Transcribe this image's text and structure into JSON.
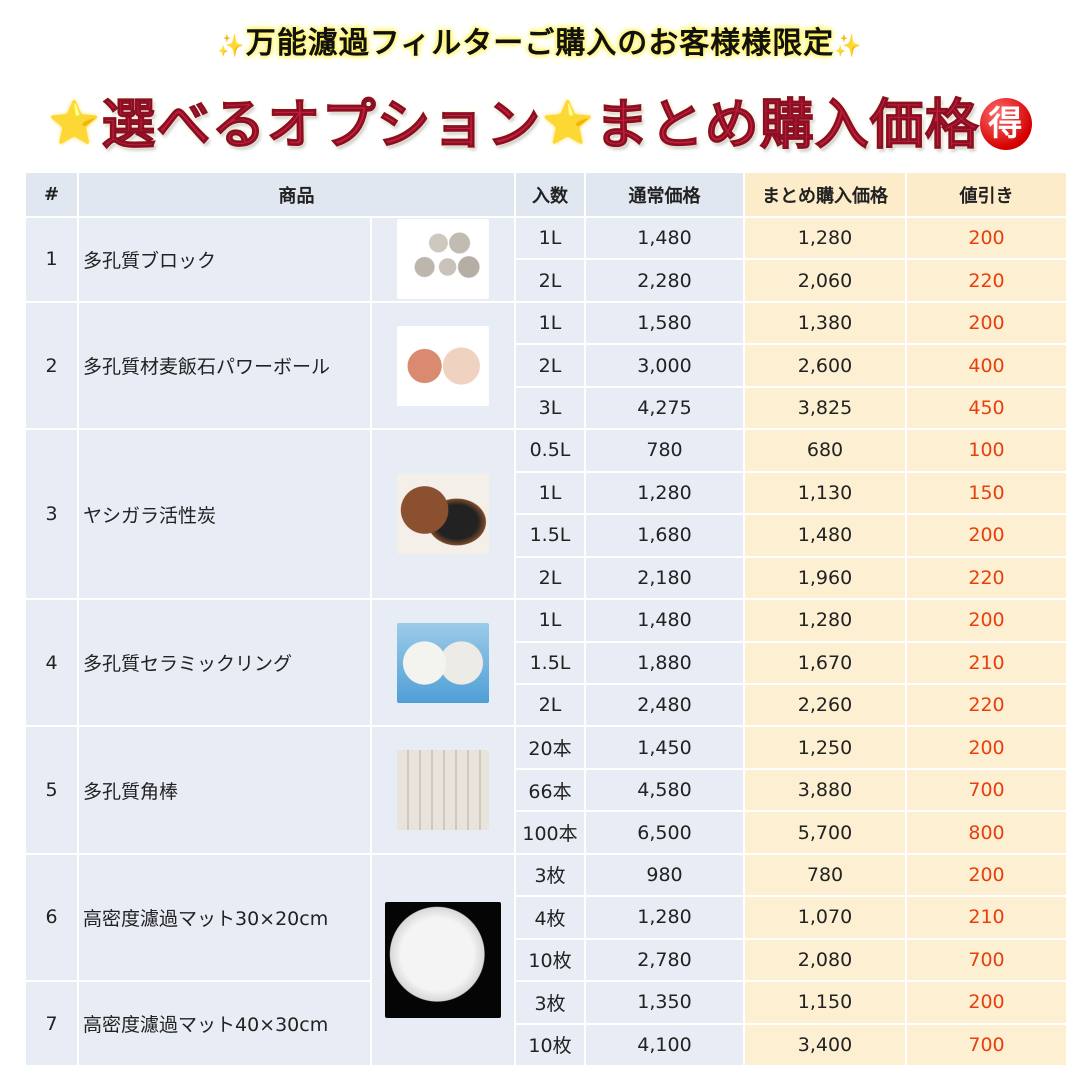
{
  "title_line1": "万能濾過フィルターご購入のお客様様限定",
  "title_line2_a": "選べるオプション",
  "title_line2_b": "まとめ購入価格",
  "badge": "得",
  "icons": {
    "sparkle": "✨",
    "star": "⭐"
  },
  "colors": {
    "title_red": "#c41d3a",
    "discount_red": "#e8400c",
    "header_bg": "#e1e7f1",
    "bulk_bg": "#fdf0d2"
  },
  "headers": [
    "#",
    "商品",
    "入数",
    "通常価格",
    "まとめ購入価格",
    "値引き"
  ],
  "products": [
    {
      "no": "1",
      "name": "多孔質ブロック",
      "image": "porous-block",
      "rows": [
        [
          "1L",
          "1,480",
          "1,280",
          "200"
        ],
        [
          "2L",
          "2,280",
          "2,060",
          "220"
        ]
      ]
    },
    {
      "no": "2",
      "name": "多孔質材麦飯石パワーボール",
      "image": "power-ball",
      "rows": [
        [
          "1L",
          "1,580",
          "1,380",
          "200"
        ],
        [
          "2L",
          "3,000",
          "2,600",
          "400"
        ],
        [
          "3L",
          "4,275",
          "3,825",
          "450"
        ]
      ]
    },
    {
      "no": "3",
      "name": "ヤシガラ活性炭",
      "image": "coconut-carbon",
      "rows": [
        [
          "0.5L",
          "780",
          "680",
          "100"
        ],
        [
          "1L",
          "1,280",
          "1,130",
          "150"
        ],
        [
          "1.5L",
          "1,680",
          "1,480",
          "200"
        ],
        [
          "2L",
          "2,180",
          "1,960",
          "220"
        ]
      ]
    },
    {
      "no": "4",
      "name": "多孔質セラミックリング",
      "image": "ceramic-ring",
      "rows": [
        [
          "1L",
          "1,480",
          "1,280",
          "200"
        ],
        [
          "1.5L",
          "1,880",
          "1,670",
          "210"
        ],
        [
          "2L",
          "2,480",
          "2,260",
          "220"
        ]
      ]
    },
    {
      "no": "5",
      "name": "多孔質角棒",
      "image": "square-rod",
      "rows": [
        [
          "20本",
          "1,450",
          "1,250",
          "200"
        ],
        [
          "66本",
          "4,580",
          "3,880",
          "700"
        ],
        [
          "100本",
          "6,500",
          "5,700",
          "800"
        ]
      ]
    },
    {
      "no": "6",
      "name": "高密度濾過マット30×20cm",
      "image": "filter-mat",
      "rows": [
        [
          "3枚",
          "980",
          "780",
          "200"
        ],
        [
          "4枚",
          "1,280",
          "1,070",
          "210"
        ],
        [
          "10枚",
          "2,780",
          "2,080",
          "700"
        ]
      ]
    },
    {
      "no": "7",
      "name": "高密度濾過マット40×30cm",
      "image": "filter-mat",
      "rows": [
        [
          "3枚",
          "1,350",
          "1,150",
          "200"
        ],
        [
          "10枚",
          "4,100",
          "3,400",
          "700"
        ]
      ]
    }
  ]
}
